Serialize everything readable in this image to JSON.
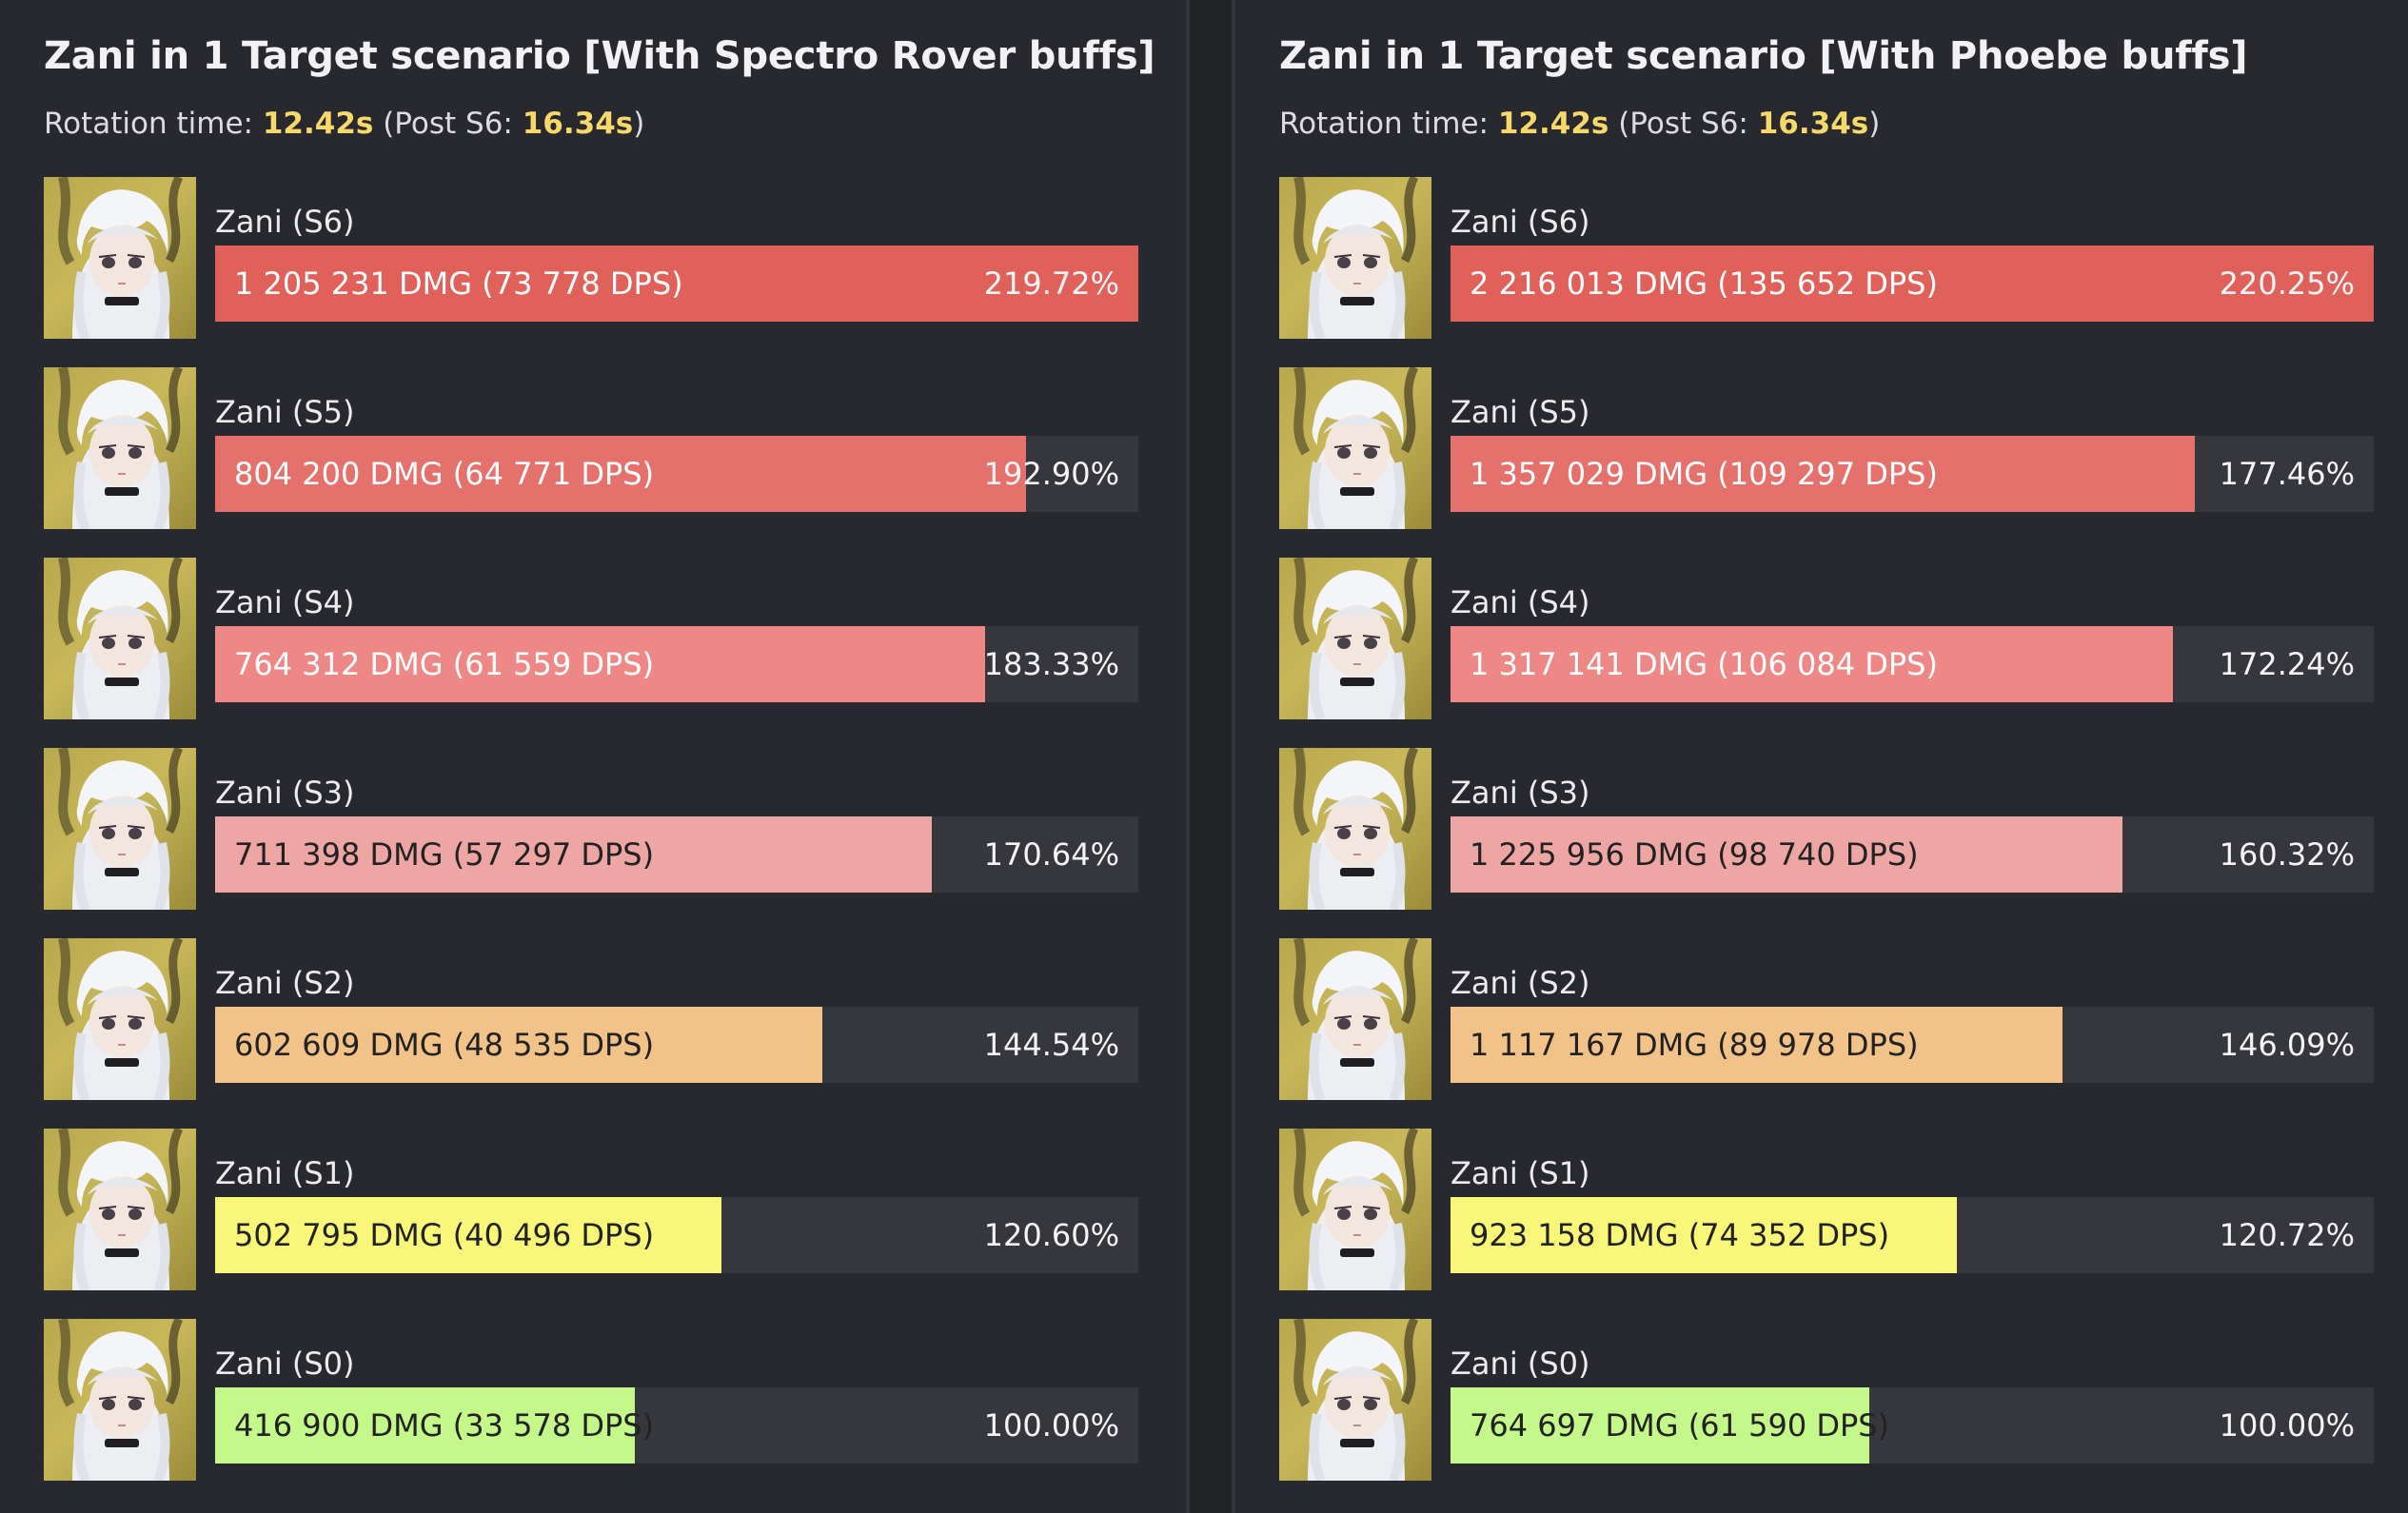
{
  "chart_data": [
    {
      "type": "bar",
      "title": "Zani in 1 Target scenario [With Spectro Rover buffs]",
      "subtitle": {
        "prefix": "Rotation time: ",
        "rotation_time": "12.42s",
        "post_prefix": " (Post S6: ",
        "post_s6_time": "16.34s",
        "suffix": ")"
      },
      "xlim": [
        0,
        219.72
      ],
      "bars": [
        {
          "name": "Zani (S6)",
          "label": "1 205 231 DMG (73 778 DPS)",
          "damage": 1205231,
          "dps": 73778,
          "percent": 219.72,
          "pct_text": "219.72%",
          "color": "#e0605a",
          "text_color": "#ffffff"
        },
        {
          "name": "Zani (S5)",
          "label": "804 200 DMG (64 771 DPS)",
          "damage": 804200,
          "dps": 64771,
          "percent": 192.9,
          "pct_text": "192.90%",
          "color": "#e4716b",
          "text_color": "#ffffff"
        },
        {
          "name": "Zani (S4)",
          "label": "764 312 DMG (61 559 DPS)",
          "damage": 764312,
          "dps": 61559,
          "percent": 183.33,
          "pct_text": "183.33%",
          "color": "#ee8886",
          "text_color": "#ffffff"
        },
        {
          "name": "Zani (S3)",
          "label": "711 398 DMG (57 297 DPS)",
          "damage": 711398,
          "dps": 57297,
          "percent": 170.64,
          "pct_text": "170.64%",
          "color": "#eea6a5",
          "text_color": "#222222"
        },
        {
          "name": "Zani (S2)",
          "label": "602 609 DMG (48 535 DPS)",
          "damage": 602609,
          "dps": 48535,
          "percent": 144.54,
          "pct_text": "144.54%",
          "color": "#f2c388",
          "text_color": "#222222"
        },
        {
          "name": "Zani (S1)",
          "label": "502 795 DMG (40 496 DPS)",
          "damage": 502795,
          "dps": 40496,
          "percent": 120.6,
          "pct_text": "120.60%",
          "color": "#f8f77a",
          "text_color": "#222222"
        },
        {
          "name": "Zani (S0)",
          "label": "416 900 DMG (33 578 DPS)",
          "damage": 416900,
          "dps": 33578,
          "percent": 100.0,
          "pct_text": "100.00%",
          "color": "#c5f88a",
          "text_color": "#222222"
        }
      ]
    },
    {
      "type": "bar",
      "title": "Zani in 1 Target scenario [With Phoebe buffs]",
      "subtitle": {
        "prefix": "Rotation time: ",
        "rotation_time": "12.42s",
        "post_prefix": " (Post S6: ",
        "post_s6_time": "16.34s",
        "suffix": ")"
      },
      "xlim": [
        0,
        220.25
      ],
      "bars": [
        {
          "name": "Zani (S6)",
          "label": "2 216 013 DMG (135 652 DPS)",
          "damage": 2216013,
          "dps": 135652,
          "percent": 220.25,
          "pct_text": "220.25%",
          "color": "#e0605a",
          "text_color": "#ffffff"
        },
        {
          "name": "Zani (S5)",
          "label": "1 357 029 DMG (109 297 DPS)",
          "damage": 1357029,
          "dps": 109297,
          "percent": 177.46,
          "pct_text": "177.46%",
          "color": "#e4716b",
          "text_color": "#ffffff"
        },
        {
          "name": "Zani (S4)",
          "label": "1 317 141 DMG (106 084 DPS)",
          "damage": 1317141,
          "dps": 106084,
          "percent": 172.24,
          "pct_text": "172.24%",
          "color": "#ee8886",
          "text_color": "#ffffff"
        },
        {
          "name": "Zani (S3)",
          "label": "1 225 956 DMG (98 740 DPS)",
          "damage": 1225956,
          "dps": 98740,
          "percent": 160.32,
          "pct_text": "160.32%",
          "color": "#eea6a5",
          "text_color": "#222222"
        },
        {
          "name": "Zani (S2)",
          "label": "1 117 167 DMG (89 978 DPS)",
          "damage": 1117167,
          "dps": 89978,
          "percent": 146.09,
          "pct_text": "146.09%",
          "color": "#f2c388",
          "text_color": "#222222"
        },
        {
          "name": "Zani (S1)",
          "label": "923 158 DMG (74 352 DPS)",
          "damage": 923158,
          "dps": 74352,
          "percent": 120.72,
          "pct_text": "120.72%",
          "color": "#f8f77a",
          "text_color": "#222222"
        },
        {
          "name": "Zani (S0)",
          "label": "764 697 DMG (61 590 DPS)",
          "damage": 764697,
          "dps": 61590,
          "percent": 100.0,
          "pct_text": "100.00%",
          "color": "#c5f88a",
          "text_color": "#222222"
        }
      ]
    }
  ]
}
